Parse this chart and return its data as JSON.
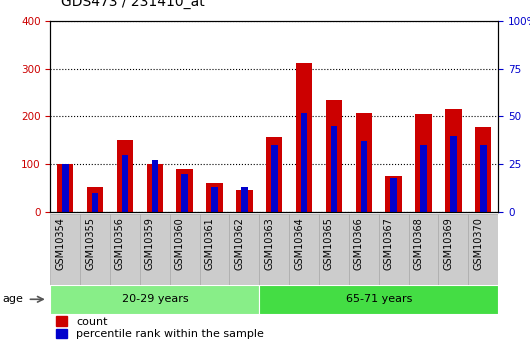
{
  "title": "GDS473 / 231410_at",
  "samples": [
    "GSM10354",
    "GSM10355",
    "GSM10356",
    "GSM10359",
    "GSM10360",
    "GSM10361",
    "GSM10362",
    "GSM10363",
    "GSM10364",
    "GSM10365",
    "GSM10366",
    "GSM10367",
    "GSM10368",
    "GSM10369",
    "GSM10370"
  ],
  "count_values": [
    100,
    52,
    150,
    100,
    90,
    60,
    47,
    157,
    312,
    235,
    207,
    75,
    205,
    215,
    177
  ],
  "percentile_values": [
    25,
    10,
    30,
    27,
    20,
    13,
    13,
    35,
    52,
    45,
    37,
    18,
    35,
    40,
    35
  ],
  "groups": [
    {
      "label": "20-29 years",
      "start": 0,
      "end": 7,
      "color": "#88ee88"
    },
    {
      "label": "65-71 years",
      "start": 7,
      "end": 15,
      "color": "#44dd44"
    }
  ],
  "age_label": "age",
  "ylim_left": [
    0,
    400
  ],
  "ylim_right": [
    0,
    100
  ],
  "yticks_left": [
    0,
    100,
    200,
    300,
    400
  ],
  "yticks_right": [
    0,
    25,
    50,
    75,
    100
  ],
  "ytick_labels_right": [
    "0",
    "25",
    "50",
    "75",
    "100%"
  ],
  "bar_color_count": "#cc0000",
  "bar_color_percentile": "#0000cc",
  "bar_width": 0.55,
  "percentile_bar_width": 0.22,
  "grid_color": "#000000",
  "background_color": "#ffffff",
  "title_fontsize": 10,
  "tick_fontsize": 7.5,
  "label_fontsize": 8,
  "legend_fontsize": 8,
  "left_tick_color": "#cc0000",
  "right_tick_color": "#0000cc",
  "sample_box_color": "#cccccc",
  "sample_box_edge": "#aaaaaa"
}
